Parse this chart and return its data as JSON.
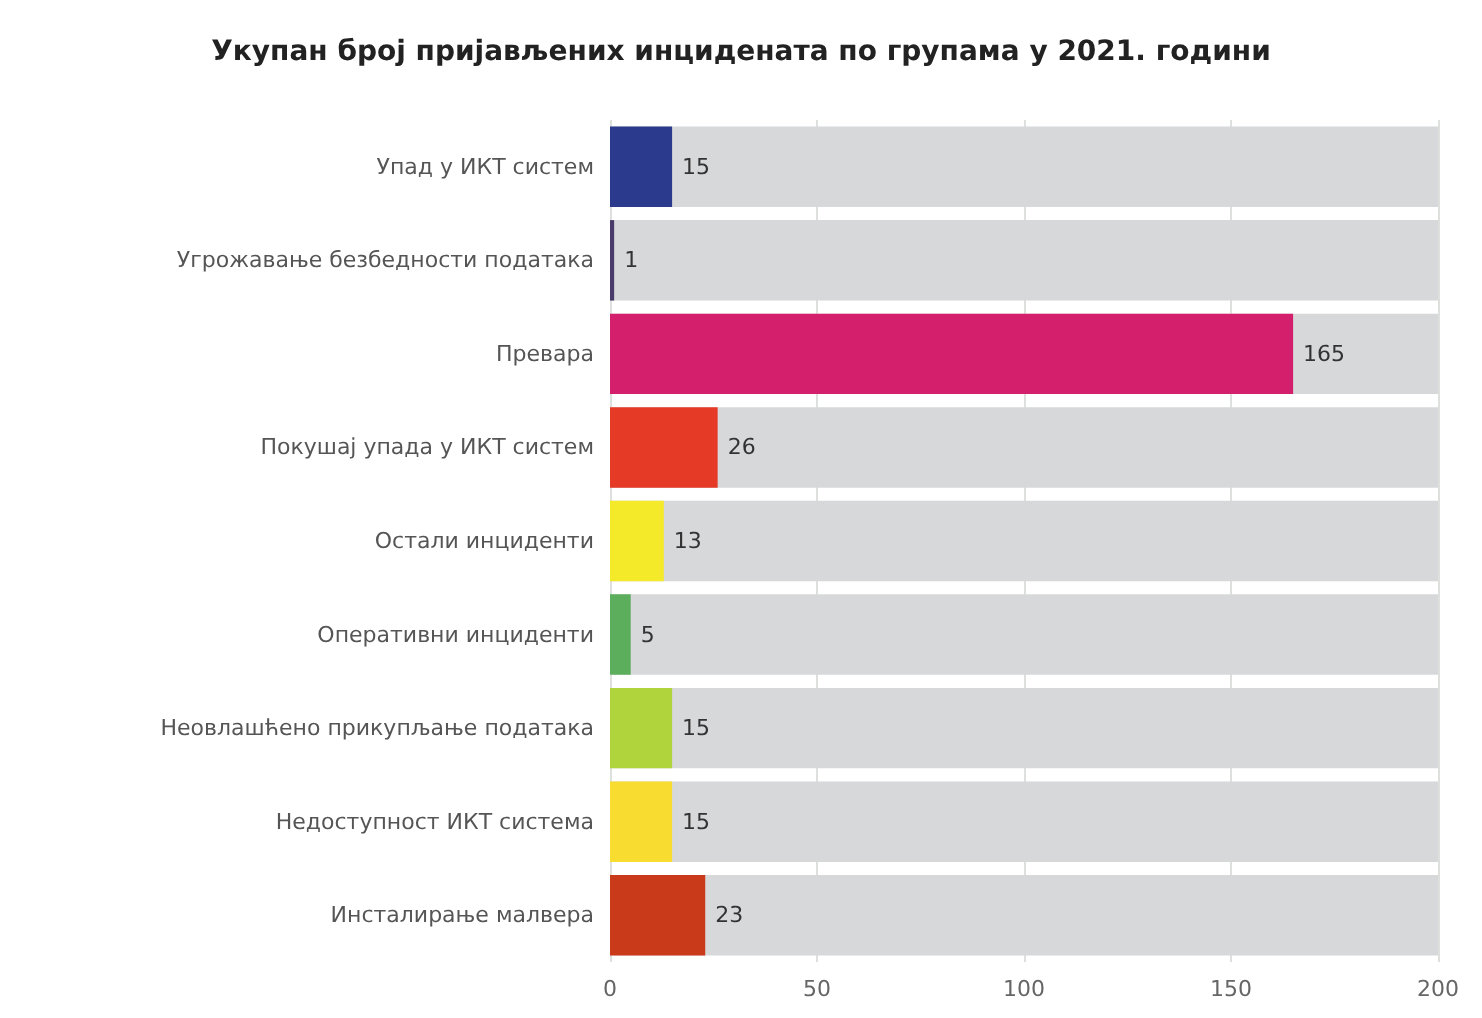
{
  "chart_data": {
    "type": "bar",
    "orientation": "horizontal",
    "title": "Укупан број пријављених инцидената по групама у 2021. години",
    "categories": [
      "Упад у ИКТ систем",
      "Угрожавање безбедности података",
      "Превара",
      "Покушај упада у ИКТ систем",
      "Остали инциденти",
      "Оперативни инциденти",
      "Неовлашћено прикупљање података",
      "Недоступност ИКТ система",
      "Инсталирање малвера"
    ],
    "values": [
      15,
      1,
      165,
      26,
      13,
      5,
      15,
      15,
      23
    ],
    "colors": [
      "#2b3a8c",
      "#4a3a6a",
      "#d4206c",
      "#e53a26",
      "#f4ea2a",
      "#5cae5c",
      "#b0d43c",
      "#f8dc30",
      "#c83a1a"
    ],
    "xlim": [
      0,
      200
    ],
    "xticks": [
      0,
      50,
      100,
      150,
      200
    ],
    "grid": "x",
    "data_labels": true
  }
}
